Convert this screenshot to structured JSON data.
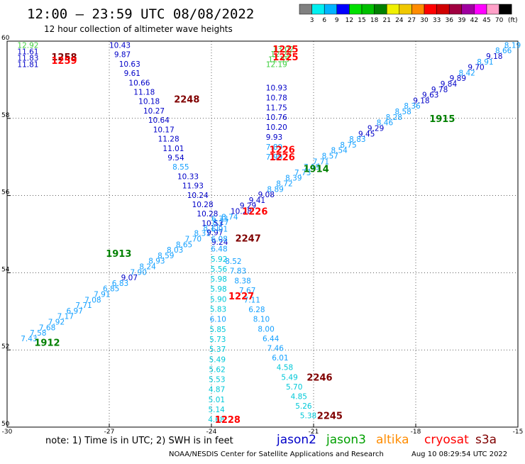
{
  "header": {
    "title": "12:00 – 23:59 UTC 08/08/2022",
    "subtitle": "12 hour collection of altimeter wave heights"
  },
  "colorbar": {
    "labels": [
      "3",
      "6",
      "9",
      "12",
      "15",
      "18",
      "21",
      "24",
      "27",
      "30",
      "33",
      "36",
      "39",
      "42",
      "45",
      "70"
    ],
    "unit": "(ft)",
    "colors": [
      "#808080",
      "#00f0f0",
      "#00b4ff",
      "#0000ff",
      "#00e000",
      "#00c000",
      "#008000",
      "#f0f000",
      "#f0c800",
      "#ff8c00",
      "#ff0000",
      "#d00000",
      "#a00040",
      "#a000a0",
      "#ff00ff",
      "#ffa0c8",
      "#000000"
    ]
  },
  "axes": {
    "lon_ticks": [
      "-30",
      "-27",
      "-24",
      "-21",
      "-18",
      "-15"
    ],
    "lat_ticks": [
      "60",
      "58",
      "56",
      "54",
      "52",
      "50"
    ],
    "lon_range": [
      -30,
      -15
    ],
    "lat_range": [
      50,
      60
    ]
  },
  "footer": {
    "note": "note:  1) Time is in UTC;  2) SWH is in feet",
    "credit": "NOAA/NESDIS Center for Satellite Applications and Research",
    "timestamp": "Aug 10 08:29:54 UTC 2022"
  },
  "legend": [
    {
      "label": "jason2",
      "color": "#0000c8"
    },
    {
      "label": "jason3",
      "color": "#00a000"
    },
    {
      "label": "altika",
      "color": "#ff8c00"
    },
    {
      "label": "cryosat",
      "color": "#ff0000"
    },
    {
      "label": "s3a",
      "color": "#800000"
    }
  ],
  "chart_data": {
    "type": "scatter",
    "xlabel": "",
    "ylabel": "",
    "xlim": [
      -30,
      -15
    ],
    "ylim": [
      50,
      60
    ],
    "grid": true,
    "time_labels": [
      {
        "text": "1258",
        "lon": -28.7,
        "lat": 59.6,
        "color": "#800000"
      },
      {
        "text": "1259",
        "lon": -28.7,
        "lat": 59.5,
        "color": "#ff0000"
      },
      {
        "text": "2248",
        "lon": -25.1,
        "lat": 58.5,
        "color": "#800000"
      },
      {
        "text": "1225",
        "lon": -22.2,
        "lat": 59.8,
        "color": "#ff0000"
      },
      {
        "text": "1225",
        "lon": -22.2,
        "lat": 59.6,
        "color": "#ff0000"
      },
      {
        "text": "1915",
        "lon": -17.6,
        "lat": 58.0,
        "color": "#008000"
      },
      {
        "text": "1226",
        "lon": -22.3,
        "lat": 57.2,
        "color": "#ff0000"
      },
      {
        "text": "1226",
        "lon": -22.3,
        "lat": 57.0,
        "color": "#ff0000"
      },
      {
        "text": "1914",
        "lon": -21.3,
        "lat": 56.7,
        "color": "#008000"
      },
      {
        "text": "1226",
        "lon": -23.1,
        "lat": 55.6,
        "color": "#ff0000"
      },
      {
        "text": "2247",
        "lon": -23.3,
        "lat": 54.9,
        "color": "#800000"
      },
      {
        "text": "1913",
        "lon": -27.1,
        "lat": 54.5,
        "color": "#008000"
      },
      {
        "text": "1227",
        "lon": -23.5,
        "lat": 53.4,
        "color": "#ff0000"
      },
      {
        "text": "1912",
        "lon": -29.2,
        "lat": 52.2,
        "color": "#008000"
      },
      {
        "text": "2246",
        "lon": -21.2,
        "lat": 51.3,
        "color": "#800000"
      },
      {
        "text": "1228",
        "lon": -23.9,
        "lat": 50.2,
        "color": "#ff0000"
      },
      {
        "text": "2245",
        "lon": -20.9,
        "lat": 50.3,
        "color": "#800000"
      }
    ],
    "tracks": [
      {
        "name": "",
        "start": [
          -29.6,
          52.3
        ],
        "end": [
          -15.4,
          59.9
        ],
        "values": [
          "7.43",
          "7.58",
          "7.68",
          "7.92",
          "7.17",
          "6.97",
          "7.71",
          "7.08",
          "7.91",
          "6.85",
          "6.83",
          "9.07",
          "7.90",
          "8.24",
          "8.93",
          "8.59",
          "8.03",
          "8.65",
          "7.70",
          "8.31",
          "8.11",
          "8.27",
          "8.74",
          "10.28",
          "9.29",
          "9.41",
          "9.08",
          "8.89",
          "8.72",
          "8.39",
          "7.73",
          "7.19",
          "7.71",
          "8.57",
          "8.54",
          "8.75",
          "8.83",
          "9.45",
          "9.29",
          "8.46",
          "8.28",
          "8.58",
          "8.36",
          "9.18",
          "9.63",
          "9.78",
          "9.84",
          "9.89",
          "8.42",
          "9.70",
          "8.91",
          "9.18",
          "8.66",
          "8.19"
        ]
      },
      {
        "name": "",
        "start": [
          -29.7,
          59.9
        ],
        "end": [
          -29.7,
          59.4
        ],
        "values": [
          "12.92",
          "11.61",
          "11.83",
          "11.81"
        ]
      },
      {
        "name": "",
        "start": [
          -27.0,
          59.9
        ],
        "end": [
          -24.0,
          54.8
        ],
        "values": [
          "10.43",
          "9.87",
          "10.63",
          "9.61",
          "10.66",
          "11.18",
          "10.18",
          "10.27",
          "10.64",
          "10.17",
          "11.28",
          "11.01",
          "9.54",
          "8.55",
          "10.33",
          "11.93",
          "10.24",
          "10.28",
          "10.28",
          "10.53",
          "9.97",
          "9.24"
        ]
      },
      {
        "name": "",
        "start": [
          -22.2,
          59.8
        ],
        "end": [
          -22.4,
          59.4
        ],
        "values": [
          "13.02",
          "12.28",
          "12.35",
          "12.19"
        ]
      },
      {
        "name": "",
        "start": [
          -22.4,
          58.8
        ],
        "end": [
          -22.4,
          57.0
        ],
        "values": [
          "10.93",
          "10.78",
          "11.75",
          "10.76",
          "10.20",
          "9.93",
          "7.89",
          "7.99"
        ]
      },
      {
        "name": "",
        "start": [
          -24.0,
          55.4
        ],
        "end": [
          -24.1,
          50.2
        ],
        "values": [
          "6.33",
          "6.91",
          "6.08",
          "6.48",
          "5.92",
          "5.56",
          "5.98",
          "5.98",
          "5.90",
          "5.83",
          "6.10",
          "5.85",
          "5.73",
          "5.37",
          "5.49",
          "5.62",
          "5.53",
          "4.87",
          "5.01",
          "5.14",
          "4.68"
        ]
      },
      {
        "name": "",
        "start": [
          -23.6,
          54.3
        ],
        "end": [
          -21.4,
          50.3
        ],
        "values": [
          "8.52",
          "7.83",
          "8.38",
          "7.67",
          "7.11",
          "6.28",
          "8.10",
          "8.00",
          "6.44",
          "7.46",
          "6.01",
          "4.58",
          "5.49",
          "5.70",
          "4.85",
          "5.26",
          "5.38"
        ]
      }
    ]
  }
}
